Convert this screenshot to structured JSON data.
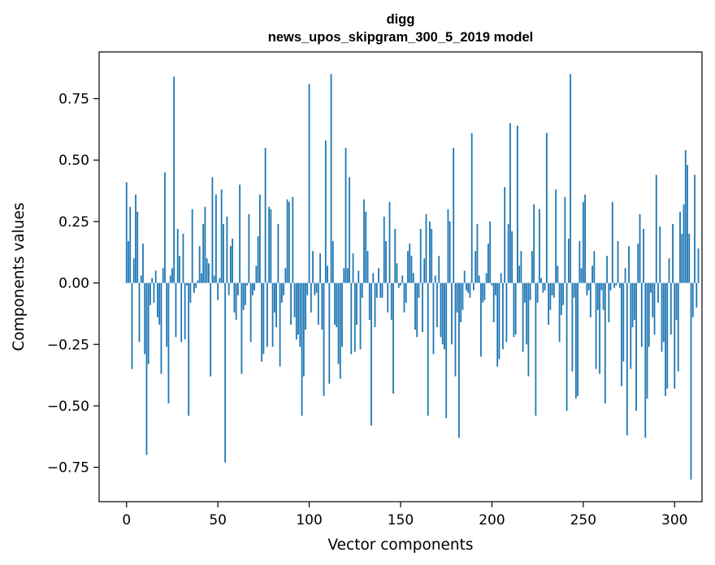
{
  "chart_data": {
    "type": "bar",
    "title_line1": "digg",
    "title_line2": "news_upos_skipgram_300_5_2019 model",
    "xlabel": "Vector components",
    "ylabel": "Components values",
    "xlim": [
      -15,
      315
    ],
    "ylim": [
      -0.89,
      0.94
    ],
    "xticks": [
      0,
      50,
      100,
      150,
      200,
      250,
      300
    ],
    "xtick_labels": [
      "0",
      "50",
      "100",
      "150",
      "200",
      "250",
      "300"
    ],
    "yticks": [
      -0.75,
      -0.5,
      -0.25,
      0.0,
      0.25,
      0.5,
      0.75
    ],
    "ytick_labels": [
      "−0.75",
      "−0.50",
      "−0.25",
      "0.00",
      "0.25",
      "0.50",
      "0.75"
    ],
    "bar_color": "#1f77b4",
    "values": [
      0.41,
      0.17,
      0.31,
      -0.35,
      0.1,
      0.36,
      0.29,
      -0.24,
      0.03,
      0.16,
      -0.29,
      -0.7,
      -0.33,
      -0.09,
      0.02,
      -0.08,
      0.05,
      -0.14,
      -0.17,
      -0.37,
      0.06,
      0.45,
      -0.26,
      -0.49,
      0.03,
      0.06,
      0.84,
      -0.22,
      0.22,
      0.11,
      -0.24,
      0.2,
      -0.23,
      -0.01,
      -0.54,
      -0.08,
      0.3,
      -0.04,
      -0.02,
      0.01,
      0.15,
      0.04,
      0.24,
      0.31,
      0.1,
      0.08,
      -0.38,
      0.43,
      0.03,
      0.36,
      -0.07,
      0.02,
      0.38,
      0.24,
      -0.73,
      0.27,
      -0.05,
      0.15,
      0.18,
      -0.12,
      -0.15,
      -0.05,
      0.4,
      -0.37,
      -0.11,
      -0.09,
      -0.01,
      0.28,
      -0.24,
      -0.05,
      -0.03,
      0.07,
      0.19,
      0.36,
      -0.32,
      -0.29,
      0.55,
      -0.26,
      0.31,
      0.3,
      -0.26,
      -0.12,
      -0.18,
      0.24,
      -0.34,
      -0.08,
      -0.05,
      0.06,
      0.34,
      0.33,
      -0.17,
      0.35,
      -0.14,
      -0.23,
      -0.21,
      -0.26,
      -0.54,
      -0.38,
      -0.19,
      -0.05,
      0.81,
      -0.12,
      0.13,
      -0.05,
      -0.04,
      -0.17,
      0.12,
      -0.19,
      -0.46,
      0.58,
      0.07,
      -0.41,
      0.85,
      0.17,
      -0.17,
      -0.18,
      -0.33,
      -0.39,
      -0.26,
      0.06,
      0.55,
      0.06,
      0.43,
      -0.29,
      0.12,
      -0.28,
      -0.17,
      0.05,
      -0.27,
      -0.06,
      0.34,
      0.29,
      0.13,
      -0.15,
      -0.58,
      0.04,
      -0.18,
      -0.06,
      0.06,
      -0.06,
      -0.06,
      0.27,
      0.17,
      -0.12,
      0.33,
      -0.15,
      -0.45,
      0.22,
      0.08,
      -0.02,
      -0.01,
      0.03,
      -0.12,
      -0.08,
      0.13,
      0.16,
      0.11,
      0.04,
      -0.19,
      -0.22,
      -0.06,
      0.22,
      -0.2,
      0.1,
      0.28,
      -0.54,
      0.25,
      0.22,
      -0.29,
      0.03,
      -0.18,
      0.11,
      -0.22,
      -0.25,
      -0.27,
      -0.55,
      0.3,
      0.25,
      -0.25,
      0.55,
      -0.38,
      -0.12,
      -0.63,
      -0.16,
      -0.11,
      0.05,
      -0.03,
      -0.04,
      -0.06,
      0.61,
      -0.03,
      0.13,
      0.24,
      0.03,
      -0.3,
      -0.08,
      -0.07,
      0.04,
      0.16,
      0.25,
      -0.01,
      -0.16,
      -0.05,
      -0.34,
      -0.31,
      0.04,
      -0.27,
      0.39,
      -0.24,
      0.24,
      0.65,
      0.21,
      -0.22,
      -0.21,
      0.64,
      0.07,
      0.13,
      -0.28,
      -0.08,
      -0.25,
      -0.38,
      -0.07,
      0.13,
      0.32,
      -0.54,
      -0.08,
      0.3,
      0.02,
      -0.04,
      -0.03,
      0.61,
      -0.17,
      -0.11,
      -0.05,
      -0.06,
      0.38,
      0.07,
      -0.24,
      -0.13,
      -0.09,
      0.35,
      -0.52,
      0.18,
      0.85,
      -0.36,
      -0.06,
      -0.47,
      -0.46,
      0.17,
      0.06,
      0.33,
      0.36,
      -0.05,
      -0.03,
      -0.14,
      0.07,
      0.13,
      -0.35,
      -0.11,
      -0.37,
      -0.03,
      -0.11,
      -0.49,
      0.11,
      -0.16,
      -0.03,
      0.33,
      -0.02,
      -0.01,
      0.17,
      -0.02,
      -0.42,
      -0.32,
      0.06,
      -0.62,
      0.15,
      -0.35,
      -0.18,
      -0.15,
      -0.52,
      0.16,
      0.28,
      -0.26,
      0.22,
      -0.63,
      -0.47,
      -0.26,
      -0.04,
      -0.14,
      -0.21,
      0.44,
      -0.08,
      0.23,
      -0.28,
      -0.24,
      -0.46,
      -0.43,
      0.1,
      -0.21,
      0.24,
      -0.43,
      -0.15,
      -0.36,
      0.29,
      0.2,
      0.32,
      0.54,
      0.48,
      0.2,
      -0.8,
      -0.14,
      0.44,
      -0.1,
      0.14
    ]
  }
}
